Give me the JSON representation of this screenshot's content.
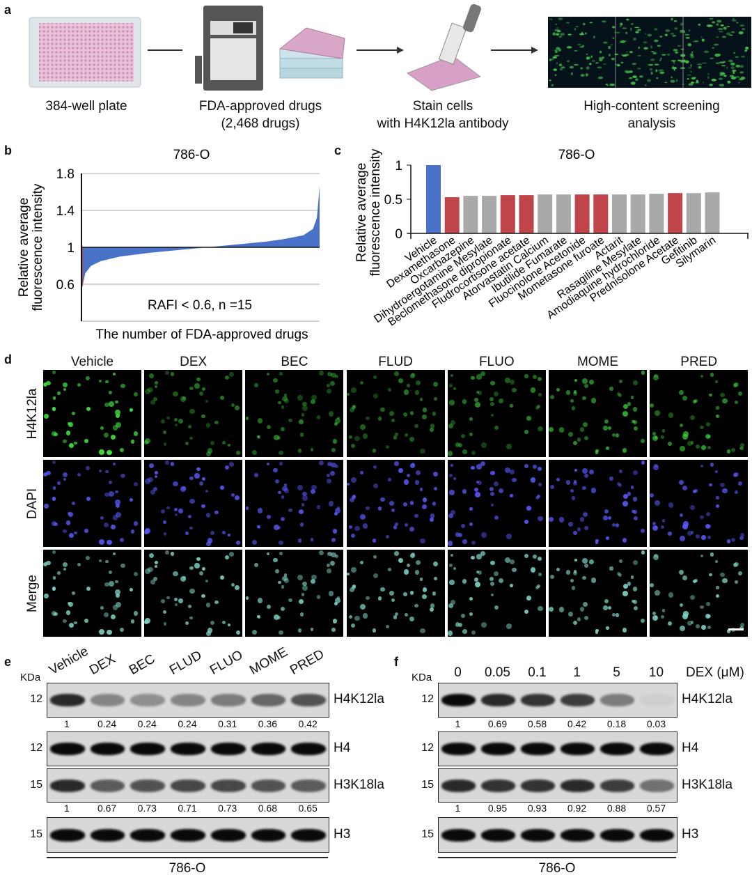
{
  "panels": {
    "a": "a",
    "b": "b",
    "c": "c",
    "d": "d",
    "e": "e",
    "f": "f"
  },
  "panel_a": {
    "steps": [
      {
        "label1": "384-well plate",
        "label2": ""
      },
      {
        "label1": "FDA-approved drugs",
        "label2": "(2,468 drugs)"
      },
      {
        "label1": "Stain cells",
        "label2": "with H4K12la antibody"
      },
      {
        "label1": "High-content screening",
        "label2": "analysis"
      }
    ],
    "icons": [
      "well-plate-icon",
      "liquid-handler-icon",
      "plate-stack-icon",
      "pipette-icon",
      "micrograph-image"
    ]
  },
  "chart_data": [
    {
      "type": "area",
      "title": "786-O",
      "xlabel": "The number of FDA-approved drugs",
      "ylabel_line1": "Relative average",
      "ylabel_line2": "fluorescence intensity",
      "yticks": [
        "1.8",
        "1.4",
        "1",
        "0.6"
      ],
      "ylim": [
        0.2,
        1.8
      ],
      "baseline": 1,
      "grid": true,
      "annotation": "RAFI < 0.6, n =15",
      "x": [
        0,
        15,
        40,
        100,
        200,
        400,
        700,
        1000,
        1300,
        1600,
        1900,
        2100,
        2300,
        2400,
        2440,
        2468
      ],
      "y": [
        0.58,
        0.6,
        0.72,
        0.8,
        0.85,
        0.9,
        0.94,
        0.97,
        1.0,
        1.03,
        1.06,
        1.09,
        1.13,
        1.2,
        1.32,
        1.66
      ],
      "colors": {
        "fill": "#4a72c8",
        "highlight": "#c0392b"
      }
    },
    {
      "type": "bar",
      "title": "786-O",
      "ylabel_line1": "Relative average",
      "ylabel_line2": "fluorescence intensity",
      "yticks": [
        "1",
        "0.5",
        "0"
      ],
      "ylim": [
        0,
        1
      ],
      "categories": [
        "Vehicle",
        "Dexamethasone",
        "Oxcarbazepine",
        "Dihydroergotamine Mesylate",
        "Beclomethasone dipropionate",
        "Fludrocortisone acetate",
        "Atorvastatin Calcium",
        "Ibutilide Fumarate",
        "Fluocinolone Acetonide",
        "Mometasone furoate",
        "Actarit",
        "Rasagiline Mesylate",
        "Amodiaquine hydrochloride",
        "Prednisolone Acetate",
        "Gefitinib",
        "Silymarin"
      ],
      "values": [
        1,
        0.53,
        0.55,
        0.55,
        0.56,
        0.56,
        0.57,
        0.57,
        0.57,
        0.57,
        0.57,
        0.57,
        0.58,
        0.59,
        0.59,
        0.6
      ],
      "bar_colors": [
        "#4a72c8",
        "#c0454b",
        "#a9a9a9",
        "#a9a9a9",
        "#c0454b",
        "#c0454b",
        "#a9a9a9",
        "#a9a9a9",
        "#c0454b",
        "#c0454b",
        "#a9a9a9",
        "#a9a9a9",
        "#a9a9a9",
        "#c0454b",
        "#a9a9a9",
        "#a9a9a9"
      ]
    }
  ],
  "panel_d": {
    "columns": [
      "Vehicle",
      "DEX",
      "BEC",
      "FLUD",
      "FLUO",
      "MOME",
      "PRED"
    ],
    "rows": [
      {
        "label": "H4K12la",
        "color": "#3ddc3d"
      },
      {
        "label": "DAPI",
        "color": "#5a5aff"
      },
      {
        "label": "Merge",
        "color": "#7fd8c8"
      }
    ],
    "green_intensity": [
      1,
      0.55,
      0.6,
      0.55,
      0.6,
      0.75,
      0.7
    ]
  },
  "panel_e": {
    "lanes": [
      "Vehicle",
      "DEX",
      "BEC",
      "FLUD",
      "FLUO",
      "MOME",
      "PRED"
    ],
    "kda_label": "KDa",
    "blots": [
      {
        "name": "H4K12la",
        "kda": "12",
        "quant": [
          "1",
          "0.24",
          "0.24",
          "0.24",
          "0.31",
          "0.36",
          "0.42"
        ],
        "intensity": [
          0.85,
          0.4,
          0.35,
          0.4,
          0.45,
          0.55,
          0.65
        ]
      },
      {
        "name": "H4",
        "kda": "12",
        "quant": [],
        "intensity": [
          1,
          1,
          1,
          1,
          1,
          1,
          1
        ]
      },
      {
        "name": "H3K18la",
        "kda": "15",
        "quant": [
          "1",
          "0.67",
          "0.73",
          "0.71",
          "0.73",
          "0.68",
          "0.65"
        ],
        "intensity": [
          0.85,
          0.6,
          0.65,
          0.7,
          0.7,
          0.65,
          0.6
        ]
      },
      {
        "name": "H3",
        "kda": "15",
        "quant": [],
        "intensity": [
          1,
          1,
          1,
          1,
          1,
          1,
          1
        ]
      }
    ],
    "cell_line": "786-O"
  },
  "panel_f": {
    "lanes": [
      "0",
      "0.05",
      "0.1",
      "1",
      "5",
      "10"
    ],
    "treatment_label": "DEX (μM)",
    "kda_label": "KDa",
    "blots": [
      {
        "name": "H4K12la",
        "kda": "12",
        "quant": [
          "1",
          "0.69",
          "0.58",
          "0.42",
          "0.18",
          "0.03"
        ],
        "intensity": [
          1,
          0.85,
          0.8,
          0.75,
          0.45,
          0.05
        ]
      },
      {
        "name": "H4",
        "kda": "12",
        "quant": [],
        "intensity": [
          1,
          1,
          1,
          1,
          1,
          1
        ]
      },
      {
        "name": "H3K18la",
        "kda": "15",
        "quant": [
          "1",
          "0.95",
          "0.93",
          "0.92",
          "0.88",
          "0.57"
        ],
        "intensity": [
          0.85,
          0.8,
          0.8,
          0.85,
          0.75,
          0.5
        ]
      },
      {
        "name": "H3",
        "kda": "15",
        "quant": [],
        "intensity": [
          1,
          1,
          1,
          1,
          1,
          1
        ]
      }
    ],
    "cell_line": "786-O"
  }
}
